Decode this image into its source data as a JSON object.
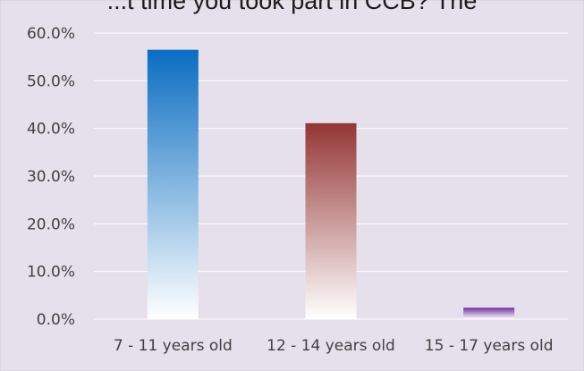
{
  "chart_data": {
    "type": "bar",
    "title": "...t time you took part in CCB? The",
    "categories": [
      "7 - 11 years old",
      "12 - 14 years old",
      "15 - 17 years old"
    ],
    "values": [
      56.5,
      41.1,
      2.4
    ],
    "ylim": [
      0,
      60
    ],
    "yticks": [
      "0.0%",
      "10.0%",
      "20.0%",
      "30.0%",
      "40.0%",
      "50.0%",
      "60.0%"
    ],
    "grid": true,
    "legend": "none",
    "colors": {
      "plot_background": "#e6e0ec",
      "gridline": "#ffffff",
      "bar_gradients": [
        [
          "#0a6dc2",
          "#ffffff"
        ],
        [
          "#943634",
          "#ffffff"
        ],
        [
          "#7030a0",
          "#ffffff"
        ]
      ]
    }
  }
}
